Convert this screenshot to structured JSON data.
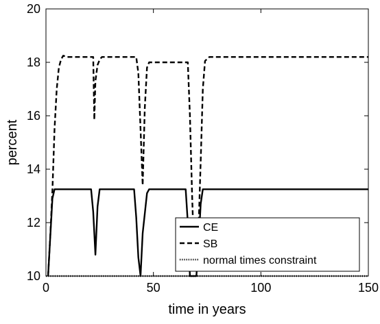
{
  "chart_data": {
    "type": "line",
    "title": "",
    "xlabel": "time in years",
    "ylabel": "percent",
    "xlim": [
      0,
      150
    ],
    "ylim": [
      10,
      20
    ],
    "xticks": [
      0,
      50,
      100,
      150
    ],
    "yticks": [
      10,
      12,
      14,
      16,
      18,
      20
    ],
    "grid": false,
    "legend_position": "bottom-right",
    "series": [
      {
        "name": "CE",
        "style": "solid",
        "color": "#000000",
        "x": [
          1,
          3,
          4,
          21,
          22,
          23,
          24,
          25,
          41,
          42,
          43,
          44,
          45,
          47,
          48,
          65,
          66,
          67,
          68,
          69,
          70,
          71,
          72,
          73,
          74,
          150
        ],
        "y": [
          10,
          12.9,
          13.25,
          13.25,
          12.4,
          10.8,
          12.6,
          13.25,
          13.25,
          12.2,
          10.7,
          10.0,
          11.6,
          13.1,
          13.25,
          13.25,
          12.0,
          10.0,
          10.0,
          10.0,
          10.0,
          11.2,
          12.7,
          13.25,
          13.25,
          13.25
        ]
      },
      {
        "name": "SB",
        "style": "dashed",
        "color": "#000000",
        "x": [
          1,
          2,
          3,
          4,
          5,
          6,
          7,
          8,
          10,
          22,
          22.5,
          23,
          24,
          25,
          26,
          28,
          42,
          43,
          44,
          45,
          46,
          47,
          48,
          66,
          67,
          68,
          69,
          70,
          71,
          72,
          73,
          74,
          76,
          150
        ],
        "y": [
          10,
          11.5,
          13.2,
          15.5,
          17.0,
          17.8,
          18.1,
          18.25,
          18.2,
          18.2,
          15.85,
          17.3,
          17.9,
          18.1,
          18.2,
          18.2,
          18.2,
          17.6,
          15.5,
          13.4,
          16.3,
          17.8,
          18.0,
          18.0,
          16.0,
          13.0,
          10.6,
          10.6,
          11.8,
          14.3,
          17.0,
          18.05,
          18.2,
          18.2
        ]
      },
      {
        "name": "normal times constraint",
        "style": "dotted",
        "color": "#000000",
        "x": [
          0,
          150
        ],
        "y": [
          10,
          10
        ]
      }
    ]
  }
}
